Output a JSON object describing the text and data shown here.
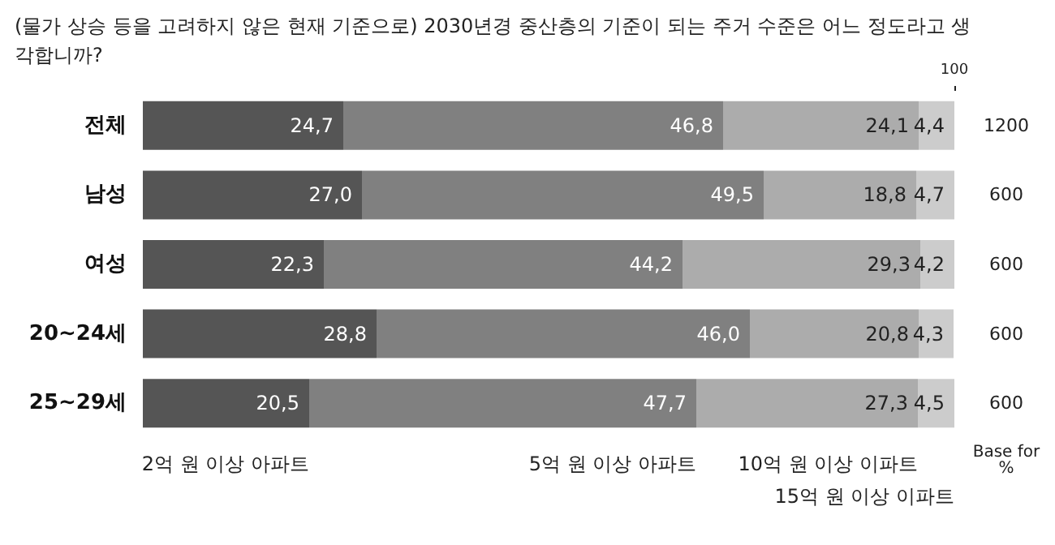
{
  "chart_data": {
    "type": "bar",
    "orientation": "horizontal",
    "stacked": true,
    "title": "(물가 상승 등을 고려하지 않은 현재 기준으로) 2030년경 중산층의 기준이 되는 주거 수준은 어느 정도라고 생각합니까?",
    "categories": [
      "전체",
      "남성",
      "여성",
      "20~24세",
      "25~29세"
    ],
    "xlim": [
      0,
      100
    ],
    "xticks": [
      {
        "value": 100,
        "label": "100"
      }
    ],
    "grid": false,
    "legend": false,
    "series": [
      {
        "name": "2억 원 이상 아파트",
        "color": "#555555",
        "values": [
          24.7,
          27.0,
          22.3,
          28.8,
          20.5
        ],
        "value_labels": [
          "24,7",
          "27,0",
          "22,3",
          "28,8",
          "20,5"
        ]
      },
      {
        "name": "5억 원 이상 아파트",
        "color": "#808080",
        "values": [
          46.8,
          49.5,
          44.2,
          46.0,
          47.7
        ],
        "value_labels": [
          "46,8",
          "49,5",
          "44,2",
          "46,0",
          "47,7"
        ]
      },
      {
        "name": "10억 원 이상 이파트",
        "color": "#acacac",
        "values": [
          24.1,
          18.8,
          29.3,
          20.8,
          27.3
        ],
        "value_labels": [
          "24,1",
          "18,8",
          "29,3",
          "20,8",
          "27,3"
        ]
      },
      {
        "name": "15억 원 이상 이파트",
        "color": "#cccccc",
        "values": [
          4.4,
          4.7,
          4.2,
          4.3,
          4.5
        ],
        "value_labels": [
          "4,4",
          "4,7",
          "4,2",
          "4,3",
          "4,5"
        ]
      }
    ],
    "annotations": [
      "1200",
      "600",
      "600",
      "600",
      "600",
      "Base for\n%"
    ]
  }
}
